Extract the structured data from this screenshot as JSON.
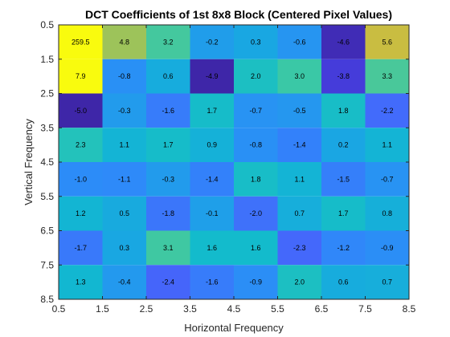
{
  "chart_data": {
    "type": "heatmap",
    "title": "DCT Coefficients of 1st 8x8 Block (Centered Pixel Values)",
    "xlabel": "Horizontal Frequency",
    "ylabel": "Vertical Frequency",
    "xlim": [
      0.5,
      8.5
    ],
    "ylim": [
      0.5,
      8.5
    ],
    "x_ticks": [
      "0.5",
      "1.5",
      "2.5",
      "3.5",
      "4.5",
      "5.5",
      "6.5",
      "7.5",
      "8.5"
    ],
    "y_ticks": [
      "0.5",
      "1.5",
      "2.5",
      "3.5",
      "4.5",
      "5.5",
      "6.5",
      "7.5",
      "8.5"
    ],
    "colormap": "parula",
    "color_range": [
      -4.9,
      7.9
    ],
    "saturated_color": "#f9fb0e",
    "values": [
      [
        259.5,
        4.8,
        3.2,
        -0.2,
        0.3,
        -0.6,
        -4.6,
        5.6
      ],
      [
        7.9,
        -0.8,
        0.6,
        -4.9,
        2.0,
        3.0,
        -3.8,
        3.3
      ],
      [
        -5.0,
        -0.3,
        -1.6,
        1.7,
        -0.7,
        -0.5,
        1.8,
        -2.2
      ],
      [
        2.3,
        1.1,
        1.7,
        0.9,
        -0.8,
        -1.4,
        0.2,
        1.1
      ],
      [
        -1.0,
        -1.1,
        -0.3,
        -1.4,
        1.8,
        1.1,
        -1.5,
        -0.7
      ],
      [
        1.2,
        0.5,
        -1.8,
        -0.1,
        -2.0,
        0.7,
        1.7,
        0.8
      ],
      [
        -1.7,
        0.3,
        3.1,
        1.6,
        1.6,
        -2.3,
        -1.2,
        -0.9
      ],
      [
        1.3,
        -0.4,
        -2.4,
        -1.6,
        -0.9,
        2.0,
        0.6,
        0.7
      ]
    ],
    "labels": [
      [
        "259.5",
        "4.8",
        "3.2",
        "-0.2",
        "0.3",
        "-0.6",
        "-4.6",
        "5.6"
      ],
      [
        "7.9",
        "-0.8",
        "0.6",
        "-4.9",
        "2.0",
        "3.0",
        "-3.8",
        "3.3"
      ],
      [
        "-5.0",
        "-0.3",
        "-1.6",
        "1.7",
        "-0.7",
        "-0.5",
        "1.8",
        "-2.2"
      ],
      [
        "2.3",
        "1.1",
        "1.7",
        "0.9",
        "-0.8",
        "-1.4",
        "0.2",
        "1.1"
      ],
      [
        "-1.0",
        "-1.1",
        "-0.3",
        "-1.4",
        "1.8",
        "1.1",
        "-1.5",
        "-0.7"
      ],
      [
        "1.2",
        "0.5",
        "-1.8",
        "-0.1",
        "-2.0",
        "0.7",
        "1.7",
        "0.8"
      ],
      [
        "-1.7",
        "0.3",
        "3.1",
        "1.6",
        "1.6",
        "-2.3",
        "-1.2",
        "-0.9"
      ],
      [
        "1.3",
        "-0.4",
        "-2.4",
        "-1.6",
        "-0.9",
        "2.0",
        "0.6",
        "0.7"
      ]
    ]
  }
}
